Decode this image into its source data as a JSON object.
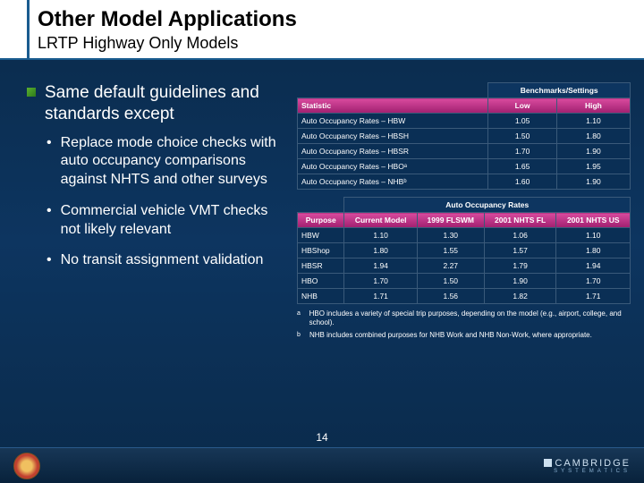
{
  "header": {
    "title": "Other Model Applications",
    "subtitle": "LRTP Highway Only Models"
  },
  "main_bullet": "Same default guidelines and standards except",
  "sub_bullets": [
    "Replace mode choice checks with auto occupancy comparisons against NHTS and other surveys",
    "Commercial vehicle VMT checks not likely relevant",
    "No transit assignment validation"
  ],
  "table1": {
    "bench_header": "Benchmarks/Settings",
    "cols": [
      "Statistic",
      "Low",
      "High"
    ],
    "rows": [
      [
        "Auto Occupancy Rates – HBW",
        "1.05",
        "1.10"
      ],
      [
        "Auto Occupancy Rates – HBSH",
        "1.50",
        "1.80"
      ],
      [
        "Auto Occupancy Rates – HBSR",
        "1.70",
        "1.90"
      ],
      [
        "Auto Occupancy Rates – HBOᵃ",
        "1.65",
        "1.95"
      ],
      [
        "Auto Occupancy Rates – NHBᵇ",
        "1.60",
        "1.90"
      ]
    ]
  },
  "table2": {
    "auto_header": "Auto Occupancy Rates",
    "cols": [
      "Purpose",
      "Current Model",
      "1999 FLSWM",
      "2001 NHTS FL",
      "2001 NHTS US"
    ],
    "rows": [
      [
        "HBW",
        "1.10",
        "1.30",
        "1.06",
        "1.10"
      ],
      [
        "HBShop",
        "1.80",
        "1.55",
        "1.57",
        "1.80"
      ],
      [
        "HBSR",
        "1.94",
        "2.27",
        "1.79",
        "1.94"
      ],
      [
        "HBO",
        "1.70",
        "1.50",
        "1.90",
        "1.70"
      ],
      [
        "NHB",
        "1.71",
        "1.56",
        "1.82",
        "1.71"
      ]
    ]
  },
  "footnotes": [
    {
      "sup": "a",
      "text": "HBO includes a variety of special trip purposes, depending on the model (e.g., airport, college, and school)."
    },
    {
      "sup": "b",
      "text": "NHB includes combined purposes for NHB Work and NHB Non-Work, where appropriate."
    }
  ],
  "page_number": "14",
  "logo": {
    "name": "CAMBRIDGE",
    "sub": "SYSTEMATICS"
  },
  "colors": {
    "pink_grad_top": "#d94a9e",
    "pink_grad_bot": "#a02070",
    "bg_top": "#0a2a4a",
    "cell_bg": "#0a2f55"
  }
}
